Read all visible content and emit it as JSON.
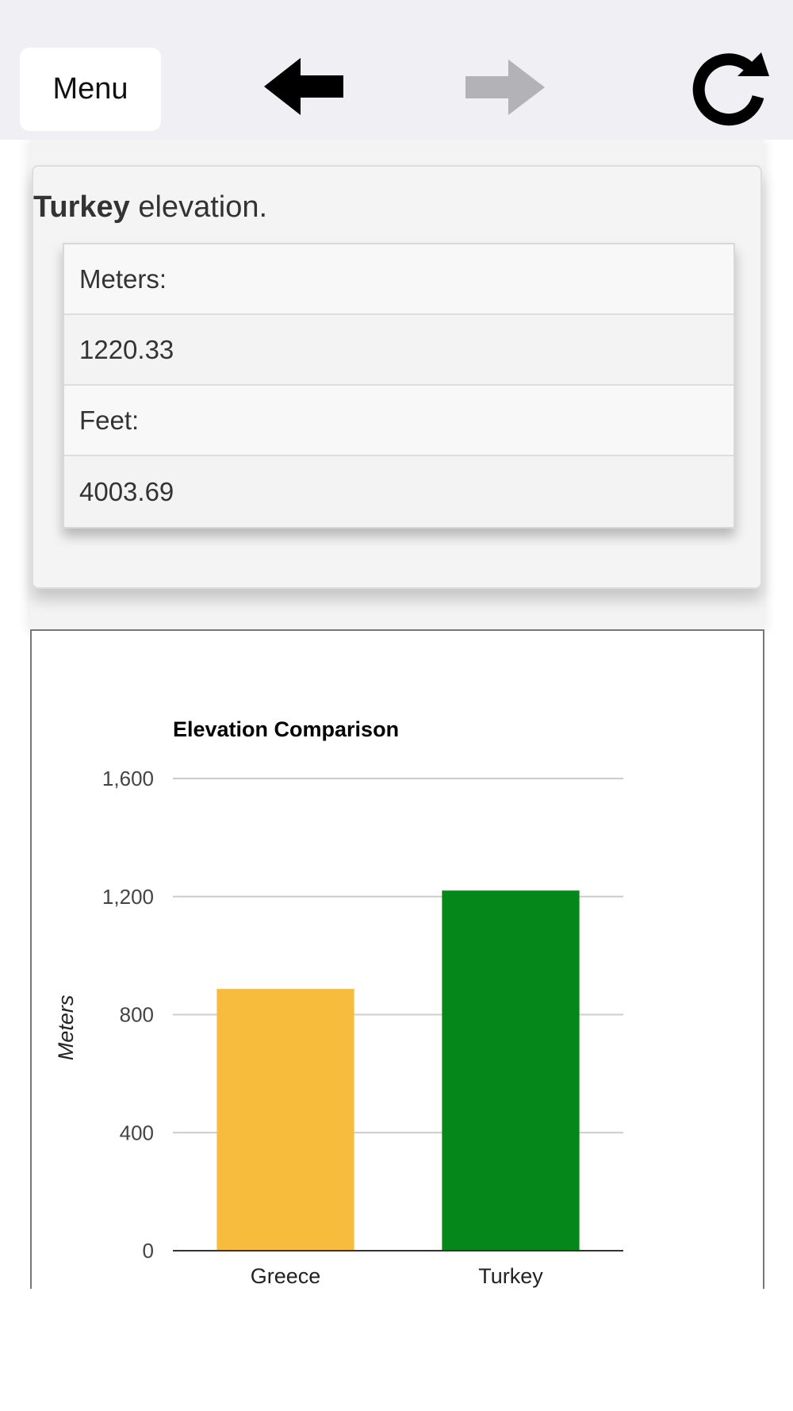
{
  "toolbar": {
    "menu_label": "Menu",
    "icons": {
      "back": "arrow-left-icon",
      "forward": "arrow-right-icon",
      "refresh": "refresh-icon"
    },
    "back_enabled": true,
    "forward_enabled": false
  },
  "card": {
    "heading_bold": "Turkey",
    "heading_rest": " elevation.",
    "rows": [
      {
        "text": "Meters:",
        "kind": "label"
      },
      {
        "text": "1220.33",
        "kind": "value"
      },
      {
        "text": "Feet:",
        "kind": "label"
      },
      {
        "text": "4003.69",
        "kind": "value"
      }
    ]
  },
  "colors": {
    "toolbar_bg": "#efeff4",
    "greece_bar": "#f7bc3c",
    "turkey_bar": "#058719",
    "gridline": "#cccccc",
    "icon_disabled": "#b3b3b7"
  },
  "chart_data": {
    "type": "bar",
    "title": "Elevation Comparison",
    "xlabel": "",
    "ylabel": "Meters",
    "categories": [
      "Greece",
      "Turkey"
    ],
    "values": [
      887,
      1220.33
    ],
    "bar_colors": [
      "#f7bc3c",
      "#058719"
    ],
    "ylim": [
      0,
      1600
    ],
    "yticks": [
      0,
      400,
      800,
      1200,
      1600
    ],
    "ytick_labels": [
      "0",
      "400",
      "800",
      "1,200",
      "1,600"
    ],
    "grid": true,
    "legend": "none"
  }
}
